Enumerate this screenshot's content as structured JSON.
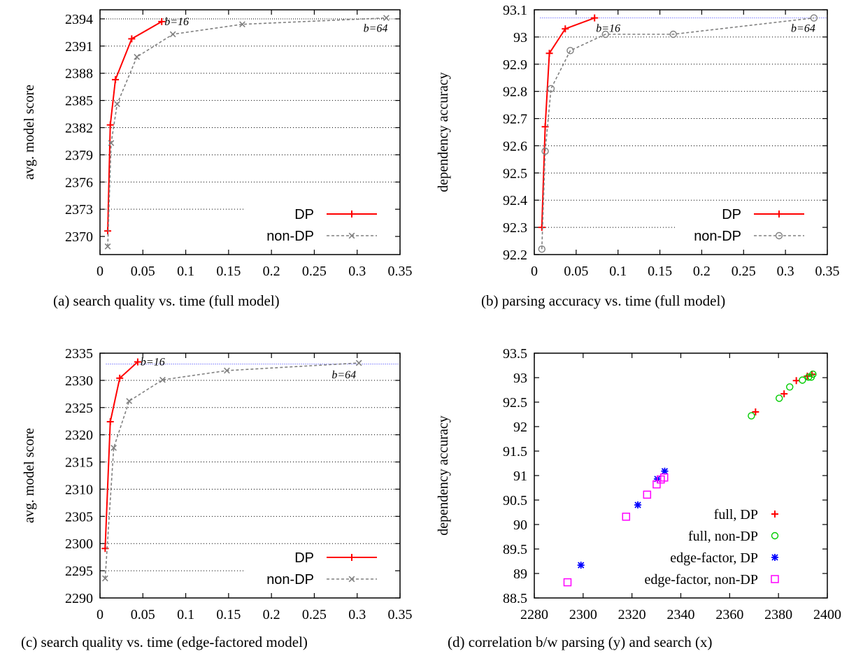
{
  "chart_data": [
    {
      "id": "a",
      "type": "line",
      "caption": "(a) search quality vs. time (full model)",
      "ylabel": "avg. model score",
      "xlabel": "",
      "xlim": [
        0,
        0.35
      ],
      "ylim": [
        2368,
        2395
      ],
      "xticks": [
        "0",
        "0.05",
        "0.1",
        "0.15",
        "0.2",
        "0.25",
        "0.3",
        "0.35"
      ],
      "yticks": [
        "2370",
        "2373",
        "2376",
        "2379",
        "2382",
        "2385",
        "2388",
        "2391",
        "2394"
      ],
      "ytick_values": [
        2370,
        2373,
        2376,
        2379,
        2382,
        2385,
        2388,
        2391,
        2394
      ],
      "grid": "horizontal dotted",
      "legend_position": "bottom-right",
      "reference_line": 2394,
      "series": [
        {
          "name": "DP",
          "color": "#ff0000",
          "marker": "plus",
          "dash": "solid",
          "x": [
            0.009,
            0.012,
            0.018,
            0.037,
            0.072
          ],
          "y": [
            2370.6,
            2382.3,
            2387.3,
            2391.8,
            2393.7
          ]
        },
        {
          "name": "non-DP",
          "color": "#808080",
          "marker": "x",
          "dash": "dashed",
          "x": [
            0.009,
            0.013,
            0.02,
            0.043,
            0.085,
            0.166,
            0.334
          ],
          "y": [
            2368.9,
            2380.3,
            2384.6,
            2389.8,
            2392.3,
            2393.4,
            2394.1
          ]
        }
      ],
      "annotations": [
        {
          "text": "b=16",
          "x": 0.072,
          "y": 2393.7,
          "anchor": "right"
        },
        {
          "text": "b=64",
          "x": 0.334,
          "y": 2394.1,
          "anchor": "below"
        }
      ]
    },
    {
      "id": "b",
      "type": "line",
      "caption": "(b) parsing accuracy vs. time (full model)",
      "ylabel": "dependency accuracy",
      "xlabel": "",
      "xlim": [
        0,
        0.35
      ],
      "ylim": [
        92.2,
        93.1
      ],
      "xticks": [
        "0",
        "0.05",
        "0.1",
        "0.15",
        "0.2",
        "0.25",
        "0.3",
        "0.35"
      ],
      "yticks": [
        "92.2",
        "92.3",
        "92.4",
        "92.5",
        "92.6",
        "92.7",
        "92.8",
        "92.9",
        "93",
        "93.1"
      ],
      "ytick_values": [
        92.2,
        92.3,
        92.4,
        92.5,
        92.6,
        92.7,
        92.8,
        92.9,
        93.0,
        93.1
      ],
      "grid": "horizontal dotted",
      "legend_position": "bottom-right",
      "reference_line": 93.07,
      "series": [
        {
          "name": "DP",
          "color": "#ff0000",
          "marker": "plus",
          "dash": "solid",
          "x": [
            0.009,
            0.013,
            0.018,
            0.037,
            0.072
          ],
          "y": [
            92.3,
            92.67,
            92.94,
            93.03,
            93.07
          ]
        },
        {
          "name": "non-DP",
          "color": "#808080",
          "marker": "circle",
          "dash": "dashed",
          "x": [
            0.009,
            0.013,
            0.02,
            0.043,
            0.085,
            0.166,
            0.334
          ],
          "y": [
            92.22,
            92.58,
            92.81,
            92.95,
            93.01,
            93.01,
            93.07
          ]
        }
      ],
      "annotations": [
        {
          "text": "b=16",
          "x": 0.072,
          "y": 93.07,
          "anchor": "below-right"
        },
        {
          "text": "b=64",
          "x": 0.334,
          "y": 93.07,
          "anchor": "below"
        }
      ]
    },
    {
      "id": "c",
      "type": "line",
      "caption": "(c) search quality vs. time (edge-factored model)",
      "ylabel": "avg. model score",
      "xlabel": "",
      "xlim": [
        0,
        0.35
      ],
      "ylim": [
        2290,
        2335
      ],
      "xticks": [
        "0",
        "0.05",
        "0.1",
        "0.15",
        "0.2",
        "0.25",
        "0.3",
        "0.35"
      ],
      "yticks": [
        "2290",
        "2295",
        "2300",
        "2305",
        "2310",
        "2315",
        "2320",
        "2325",
        "2330",
        "2335"
      ],
      "ytick_values": [
        2290,
        2295,
        2300,
        2305,
        2310,
        2315,
        2320,
        2325,
        2330,
        2335
      ],
      "grid": "horizontal dotted",
      "legend_position": "bottom-right",
      "reference_line": 2333,
      "series": [
        {
          "name": "DP",
          "color": "#ff0000",
          "marker": "plus",
          "dash": "solid",
          "x": [
            0.006,
            0.012,
            0.023,
            0.044
          ],
          "y": [
            2299.1,
            2322.4,
            2330.4,
            2333.4
          ]
        },
        {
          "name": "non-DP",
          "color": "#808080",
          "marker": "x",
          "dash": "dashed",
          "x": [
            0.006,
            0.016,
            0.034,
            0.073,
            0.148,
            0.302
          ],
          "y": [
            2293.6,
            2317.6,
            2326.2,
            2330.1,
            2331.8,
            2333.2
          ]
        }
      ],
      "annotations": [
        {
          "text": "b=16",
          "x": 0.044,
          "y": 2333.4,
          "anchor": "right"
        },
        {
          "text": "b=64",
          "x": 0.302,
          "y": 2333.2,
          "anchor": "below-left"
        }
      ]
    },
    {
      "id": "d",
      "type": "scatter",
      "caption": "(d) correlation b/w parsing (y) and search (x)",
      "ylabel": "dependency accuracy",
      "xlabel": "",
      "xlim": [
        2280,
        2400
      ],
      "ylim": [
        88.5,
        93.5
      ],
      "xticks": [
        "2280",
        "2300",
        "2320",
        "2340",
        "2360",
        "2380",
        "2400"
      ],
      "xtick_values": [
        2280,
        2300,
        2320,
        2340,
        2360,
        2380,
        2400
      ],
      "yticks": [
        "88.5",
        "89",
        "89.5",
        "90",
        "90.5",
        "91",
        "91.5",
        "92",
        "92.5",
        "93",
        "93.5"
      ],
      "ytick_values": [
        88.5,
        89,
        89.5,
        90,
        90.5,
        91,
        91.5,
        92,
        92.5,
        93,
        93.5
      ],
      "grid": "none",
      "legend_position": "bottom-right",
      "series": [
        {
          "name": "full, DP",
          "color": "#ff0000",
          "marker": "plus",
          "x": [
            2370.6,
            2382.3,
            2387.3,
            2391.8,
            2393.7
          ],
          "y": [
            92.3,
            92.67,
            92.94,
            93.03,
            93.07
          ]
        },
        {
          "name": "full, non-DP",
          "color": "#00cc00",
          "marker": "circle",
          "x": [
            2368.9,
            2380.3,
            2384.6,
            2389.8,
            2392.3,
            2393.4,
            2394.1
          ],
          "y": [
            92.22,
            92.58,
            92.81,
            92.95,
            93.01,
            93.01,
            93.07
          ]
        },
        {
          "name": "edge-factor, DP",
          "color": "#0000ff",
          "marker": "star",
          "x": [
            2299.1,
            2322.4,
            2330.4,
            2333.4
          ],
          "y": [
            89.17,
            90.4,
            90.93,
            91.09
          ]
        },
        {
          "name": "edge-factor, non-DP",
          "color": "#ff00ff",
          "marker": "square",
          "x": [
            2293.6,
            2317.6,
            2326.2,
            2330.1,
            2331.8,
            2333.2
          ],
          "y": [
            88.82,
            90.16,
            90.61,
            90.82,
            90.92,
            90.96
          ]
        }
      ]
    }
  ]
}
